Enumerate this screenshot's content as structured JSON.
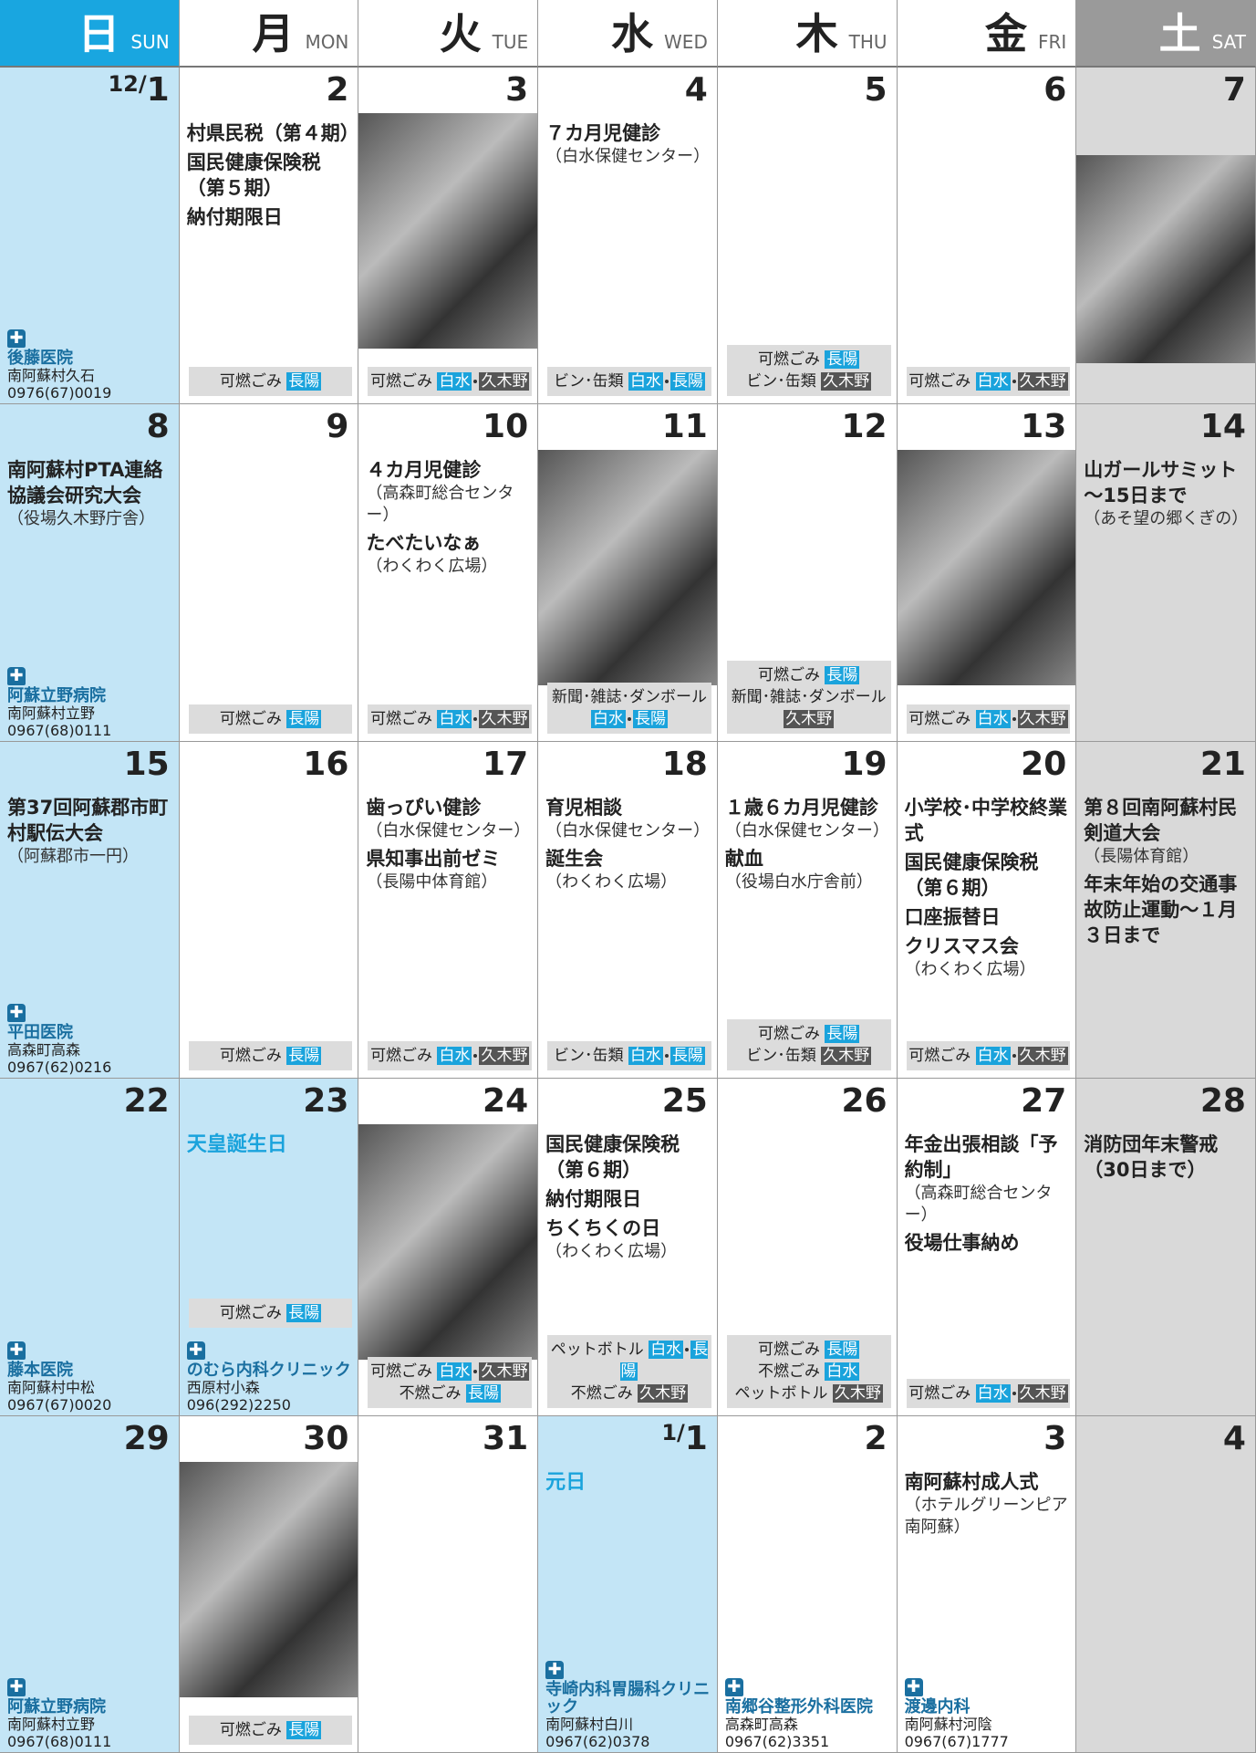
{
  "header": [
    {
      "kanji": "日",
      "en": "SUN"
    },
    {
      "kanji": "月",
      "en": "MON"
    },
    {
      "kanji": "火",
      "en": "TUE"
    },
    {
      "kanji": "水",
      "en": "WED"
    },
    {
      "kanji": "木",
      "en": "THU"
    },
    {
      "kanji": "金",
      "en": "FRI"
    },
    {
      "kanji": "土",
      "en": "SAT"
    }
  ],
  "weeks": [
    {
      "days": [
        {
          "month": "12/",
          "date": "1",
          "clinic": {
            "name": "後藤医院",
            "addr": "南阿蘇村久石",
            "phone": "0976(67)0019"
          }
        },
        {
          "date": "2",
          "events": [
            {
              "title": "村県民税（第４期）"
            },
            {
              "title": "国民健康保険税（第５期）"
            },
            {
              "title": "納付期限日"
            }
          ],
          "garbage": [
            {
              "label": "可燃ごみ",
              "tags": [
                {
                  "text": "長陽",
                  "color": "#1aa3dc"
                }
              ]
            }
          ]
        },
        {
          "date": "3",
          "garbage": [
            {
              "label": "可燃ごみ",
              "tags": [
                {
                  "text": "白水",
                  "color": "#1aa3dc"
                },
                {
                  "text": "久木野",
                  "color": "#555555"
                }
              ]
            }
          ]
        },
        {
          "date": "4",
          "events": [
            {
              "title": "７カ月児健診",
              "note": "（白水保健センター）"
            }
          ],
          "garbage": [
            {
              "label": "ビン･缶類",
              "tags": [
                {
                  "text": "白水",
                  "color": "#1aa3dc"
                },
                {
                  "text": "長陽",
                  "color": "#1aa3dc"
                }
              ]
            }
          ]
        },
        {
          "date": "5",
          "garbage": [
            {
              "label": "可燃ごみ",
              "tags": [
                {
                  "text": "長陽",
                  "color": "#1aa3dc"
                }
              ]
            },
            {
              "label": "ビン･缶類",
              "tags": [
                {
                  "text": "久木野",
                  "color": "#555555"
                }
              ]
            }
          ]
        },
        {
          "date": "6",
          "garbage": [
            {
              "label": "可燃ごみ",
              "tags": [
                {
                  "text": "白水",
                  "color": "#1aa3dc"
                },
                {
                  "text": "久木野",
                  "color": "#555555"
                }
              ]
            }
          ]
        },
        {
          "date": "7"
        }
      ]
    },
    {
      "days": [
        {
          "date": "8",
          "events": [
            {
              "title": "南阿蘇村PTA連絡協議会研究大会",
              "note": "（役場久木野庁舎）"
            }
          ],
          "clinic": {
            "name": "阿蘇立野病院",
            "addr": "南阿蘇村立野",
            "phone": "0967(68)0111"
          }
        },
        {
          "date": "9",
          "garbage": [
            {
              "label": "可燃ごみ",
              "tags": [
                {
                  "text": "長陽",
                  "color": "#1aa3dc"
                }
              ]
            }
          ]
        },
        {
          "date": "10",
          "events": [
            {
              "title": "４カ月児健診",
              "note": "（高森町総合センター）"
            },
            {
              "title": "たべたいなぁ",
              "note": "（わくわく広場）"
            }
          ],
          "garbage": [
            {
              "label": "可燃ごみ",
              "tags": [
                {
                  "text": "白水",
                  "color": "#1aa3dc"
                },
                {
                  "text": "久木野",
                  "color": "#555555"
                }
              ]
            }
          ]
        },
        {
          "date": "11",
          "garbage": [
            {
              "label": "新聞･雑誌･ダンボール",
              "tags": [
                {
                  "text": "白水",
                  "color": "#1aa3dc"
                },
                {
                  "text": "長陽",
                  "color": "#1aa3dc"
                }
              ]
            }
          ]
        },
        {
          "date": "12",
          "garbage": [
            {
              "label": "可燃ごみ",
              "tags": [
                {
                  "text": "長陽",
                  "color": "#1aa3dc"
                }
              ]
            },
            {
              "label": "新聞･雑誌･ダンボール",
              "tags": [
                {
                  "text": "久木野",
                  "color": "#555555"
                }
              ]
            }
          ]
        },
        {
          "date": "13",
          "garbage": [
            {
              "label": "可燃ごみ",
              "tags": [
                {
                  "text": "白水",
                  "color": "#1aa3dc"
                },
                {
                  "text": "久木野",
                  "color": "#555555"
                }
              ]
            }
          ]
        },
        {
          "date": "14",
          "events": [
            {
              "title": "山ガールサミット～15日まで",
              "note": "（あそ望の郷くぎの）"
            }
          ]
        }
      ]
    },
    {
      "days": [
        {
          "date": "15",
          "events": [
            {
              "title": "第37回阿蘇郡市町村駅伝大会",
              "note": "（阿蘇郡市一円）"
            }
          ],
          "clinic": {
            "name": "平田医院",
            "addr": "高森町高森",
            "phone": "0967(62)0216"
          }
        },
        {
          "date": "16",
          "garbage": [
            {
              "label": "可燃ごみ",
              "tags": [
                {
                  "text": "長陽",
                  "color": "#1aa3dc"
                }
              ]
            }
          ]
        },
        {
          "date": "17",
          "events": [
            {
              "title": "歯っぴい健診",
              "note": "（白水保健センター）"
            },
            {
              "title": "県知事出前ゼミ",
              "note": "（長陽中体育館）"
            }
          ],
          "garbage": [
            {
              "label": "可燃ごみ",
              "tags": [
                {
                  "text": "白水",
                  "color": "#1aa3dc"
                },
                {
                  "text": "久木野",
                  "color": "#555555"
                }
              ]
            }
          ]
        },
        {
          "date": "18",
          "events": [
            {
              "title": "育児相談",
              "note": "（白水保健センター）"
            },
            {
              "title": "誕生会",
              "note": "（わくわく広場）"
            }
          ],
          "garbage": [
            {
              "label": "ビン･缶類",
              "tags": [
                {
                  "text": "白水",
                  "color": "#1aa3dc"
                },
                {
                  "text": "長陽",
                  "color": "#1aa3dc"
                }
              ]
            }
          ]
        },
        {
          "date": "19",
          "events": [
            {
              "title": "１歳６カ月児健診",
              "note": "（白水保健センター）"
            },
            {
              "title": "献血",
              "note": "（役場白水庁舎前）"
            }
          ],
          "garbage": [
            {
              "label": "可燃ごみ",
              "tags": [
                {
                  "text": "長陽",
                  "color": "#1aa3dc"
                }
              ]
            },
            {
              "label": "ビン･缶類",
              "tags": [
                {
                  "text": "久木野",
                  "color": "#555555"
                }
              ]
            }
          ]
        },
        {
          "date": "20",
          "events": [
            {
              "title": "小学校･中学校終業式"
            },
            {
              "title": "国民健康保険税（第６期）"
            },
            {
              "title": "口座振替日"
            },
            {
              "title": "クリスマス会",
              "note": "（わくわく広場）"
            }
          ],
          "garbage": [
            {
              "label": "可燃ごみ",
              "tags": [
                {
                  "text": "白水",
                  "color": "#1aa3dc"
                },
                {
                  "text": "久木野",
                  "color": "#555555"
                }
              ]
            }
          ]
        },
        {
          "date": "21",
          "events": [
            {
              "title": "第８回南阿蘇村民剣道大会",
              "note": "（長陽体育館）"
            },
            {
              "title": "年末年始の交通事故防止運動～１月３日まで"
            }
          ]
        }
      ]
    },
    {
      "days": [
        {
          "date": "22",
          "clinic": {
            "name": "藤本医院",
            "addr": "南阿蘇村中松",
            "phone": "0967(67)0020"
          }
        },
        {
          "date": "23",
          "holiday": "天皇誕生日",
          "shade": "#c3e5f6",
          "garbage": [
            {
              "label": "可燃ごみ",
              "tags": [
                {
                  "text": "長陽",
                  "color": "#1aa3dc"
                }
              ]
            }
          ],
          "clinic": {
            "name": "のむら内科クリニック",
            "addr": "西原村小森",
            "phone": "096(292)2250"
          }
        },
        {
          "date": "24",
          "garbage": [
            {
              "label": "可燃ごみ",
              "tags": [
                {
                  "text": "白水",
                  "color": "#1aa3dc"
                },
                {
                  "text": "久木野",
                  "color": "#555555"
                }
              ]
            },
            {
              "label": "不燃ごみ",
              "tags": [
                {
                  "text": "長陽",
                  "color": "#1aa3dc"
                }
              ]
            }
          ]
        },
        {
          "date": "25",
          "events": [
            {
              "title": "国民健康保険税（第６期）"
            },
            {
              "title": "納付期限日"
            },
            {
              "title": "ちくちくの日",
              "note": "（わくわく広場）"
            }
          ],
          "garbage": [
            {
              "label": "ペットボトル",
              "tags": [
                {
                  "text": "白水",
                  "color": "#1aa3dc"
                },
                {
                  "text": "長陽",
                  "color": "#1aa3dc"
                }
              ]
            },
            {
              "label": "不燃ごみ",
              "tags": [
                {
                  "text": "久木野",
                  "color": "#555555"
                }
              ]
            }
          ]
        },
        {
          "date": "26",
          "garbage": [
            {
              "label": "可燃ごみ",
              "tags": [
                {
                  "text": "長陽",
                  "color": "#1aa3dc"
                }
              ]
            },
            {
              "label": "不燃ごみ",
              "tags": [
                {
                  "text": "白水",
                  "color": "#1aa3dc"
                }
              ]
            },
            {
              "label": "ペットボトル",
              "tags": [
                {
                  "text": "久木野",
                  "color": "#555555"
                }
              ]
            }
          ]
        },
        {
          "date": "27",
          "events": [
            {
              "title": "年金出張相談「予約制」",
              "note": "（高森町総合センター）"
            },
            {
              "title": "役場仕事納め"
            }
          ],
          "garbage": [
            {
              "label": "可燃ごみ",
              "tags": [
                {
                  "text": "白水",
                  "color": "#1aa3dc"
                },
                {
                  "text": "久木野",
                  "color": "#555555"
                }
              ]
            }
          ]
        },
        {
          "date": "28",
          "events": [
            {
              "title": "消防団年末警戒（30日まで）"
            }
          ]
        }
      ]
    },
    {
      "days": [
        {
          "date": "29",
          "clinic": {
            "name": "阿蘇立野病院",
            "addr": "南阿蘇村立野",
            "phone": "0967(68)0111"
          }
        },
        {
          "date": "30",
          "garbage": [
            {
              "label": "可燃ごみ",
              "tags": [
                {
                  "text": "長陽",
                  "color": "#1aa3dc"
                }
              ]
            }
          ]
        },
        {
          "date": "31"
        },
        {
          "month": "1/",
          "date": "1",
          "holiday": "元日",
          "shade": "#c3e5f6",
          "clinic": {
            "name": "寺崎内科胃腸科クリニック",
            "addr": "南阿蘇村白川",
            "phone": "0967(62)0378"
          }
        },
        {
          "date": "2",
          "clinic": {
            "name": "南郷谷整形外科医院",
            "addr": "高森町高森",
            "phone": "0967(62)3351"
          }
        },
        {
          "date": "3",
          "events": [
            {
              "title": "南阿蘇村成人式",
              "note": "（ホテルグリーンピア南阿蘇）"
            }
          ],
          "clinic": {
            "name": "渡邊内科",
            "addr": "南阿蘇村河陰",
            "phone": "0967(67)1777"
          }
        },
        {
          "date": "4"
        }
      ]
    }
  ]
}
